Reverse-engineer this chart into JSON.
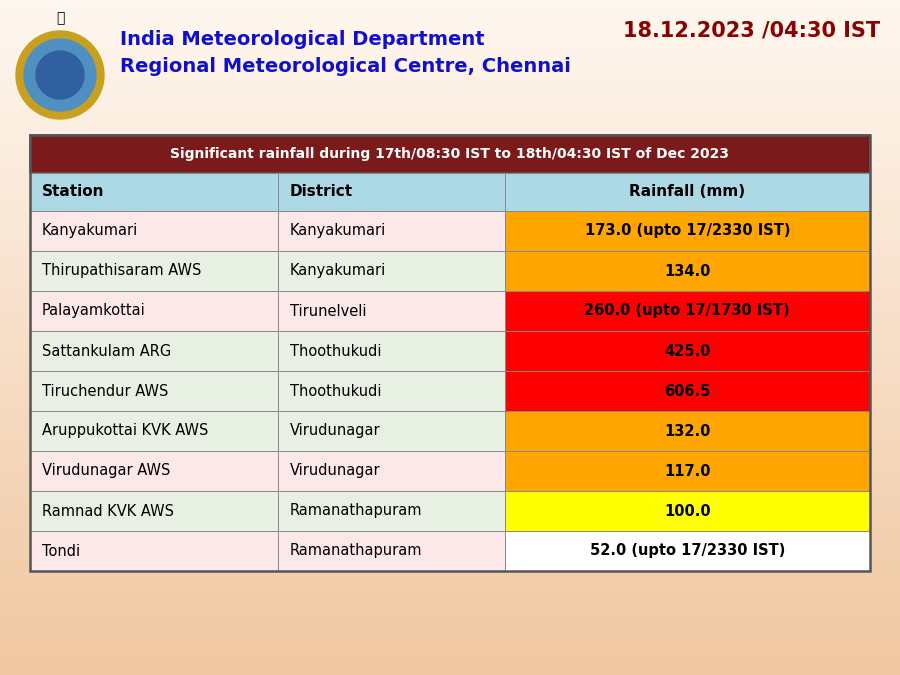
{
  "title_date": "18.12.2023 /04:30 IST",
  "org_line1": "India Meteorological Department",
  "org_line2": "Regional Meteorological Centre, Chennai",
  "table_title": "Significant rainfall during 17th/08:30 IST to 18th/04:30 IST of Dec 2023",
  "col_headers": [
    "Station",
    "District",
    "Rainfall (mm)"
  ],
  "rows": [
    [
      "Kanyakumari",
      "Kanyakumari",
      "173.0 (upto 17/2330 IST)"
    ],
    [
      "Thirupathisaram AWS",
      "Kanyakumari",
      "134.0"
    ],
    [
      "Palayamkottai",
      "Tirunelveli",
      "260.0 (upto 17/1730 IST)"
    ],
    [
      "Sattankulam ARG",
      "Thoothukudi",
      "425.0"
    ],
    [
      "Tiruchendur AWS",
      "Thoothukudi",
      "606.5"
    ],
    [
      "Aruppukottai KVK AWS",
      "Virudunagar",
      "132.0"
    ],
    [
      "Virudunagar AWS",
      "Virudunagar",
      "117.0"
    ],
    [
      "Ramnad KVK AWS",
      "Ramanathapuram",
      "100.0"
    ],
    [
      "Tondi",
      "Ramanathapuram",
      "52.0 (upto 17/2330 IST)"
    ]
  ],
  "row_bg_station": [
    "#fce8e8",
    "#e8f0e4",
    "#fce8e8",
    "#e8f0e4",
    "#e8f0e4",
    "#e8f0e4",
    "#fce8e8",
    "#e8f0e4",
    "#fce8e8"
  ],
  "row_bg_district": [
    "#fce8e8",
    "#e8f0e4",
    "#fce8e8",
    "#e8f0e4",
    "#e8f0e4",
    "#e8f0e4",
    "#fce8e8",
    "#e8f0e4",
    "#fce8e8"
  ],
  "rainfall_cell_bg": [
    "#FFA500",
    "#FFA500",
    "#FF0000",
    "#FF0000",
    "#FF0000",
    "#FFA500",
    "#FFA500",
    "#FFFF00",
    "#FFFFFF"
  ],
  "rainfall_text_color": [
    "#000000",
    "#000000",
    "#000000",
    "#000000",
    "#000000",
    "#000000",
    "#000000",
    "#000000",
    "#000000"
  ],
  "header_bg": "#ADD8E6",
  "title_row_bg": "#7B1A1A",
  "title_row_text": "#FFFFFF",
  "bg_color_top": "#FFF8F0",
  "bg_color_bot": "#F0C8A0",
  "org_text_color": "#1010CC",
  "date_text_color": "#8B0000",
  "col_split1": 0.295,
  "col_split2": 0.565
}
